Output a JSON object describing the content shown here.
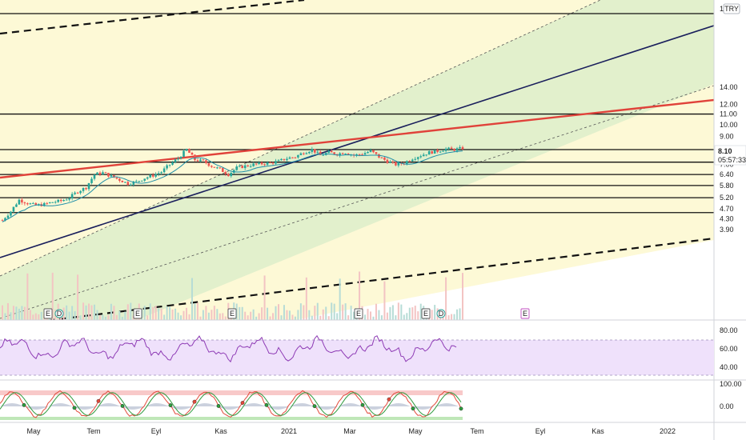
{
  "chart_data": {
    "type": "candlestick",
    "currency": "TRY",
    "last_price": "8.10",
    "countdown": "05:57:33",
    "y_ticks": [
      "16.",
      "14.00",
      "12.00",
      "11.00",
      "10.00",
      "9.00",
      "8.00",
      "7.00",
      "6.40",
      "5.80",
      "5.20",
      "4.70",
      "4.30",
      "3.90"
    ],
    "x_ticks": [
      "May",
      "Tem",
      "Eyl",
      "Kas",
      "2021",
      "Mar",
      "May",
      "Tem",
      "Eyl",
      "Kas",
      "2022"
    ],
    "horizontal_levels": [
      16.0,
      11.0,
      8.0,
      7.15,
      6.4,
      5.8,
      5.2,
      4.55
    ],
    "series": [
      {
        "values": [
          4.25,
          4.6,
          5.1,
          4.95,
          4.85,
          4.9,
          5.0,
          5.05,
          5.2,
          5.5,
          5.7,
          6.4,
          6.5,
          6.3,
          6.1,
          5.9,
          6.0,
          6.2,
          6.35,
          6.55,
          7.0,
          7.4,
          8.0,
          7.3,
          7.2,
          6.9,
          6.7,
          6.4,
          6.8,
          6.9,
          7.0,
          7.05,
          7.1,
          7.2,
          7.4,
          7.5,
          7.8,
          8.0,
          7.6,
          7.8,
          7.7,
          7.8,
          7.6,
          7.7,
          7.9,
          7.5,
          7.2,
          7.0,
          7.1,
          7.4,
          7.6,
          7.8,
          7.9,
          8.05,
          8.0,
          8.1
        ]
      }
    ],
    "rsi": {
      "ticks": [
        "80.00",
        "60.00",
        "40.00"
      ]
    },
    "stoch": {
      "ticks": [
        "100.00",
        "0.00"
      ]
    },
    "event_markers": [
      "E",
      "D",
      "E",
      "E",
      "E",
      "E",
      "D",
      "E"
    ]
  }
}
